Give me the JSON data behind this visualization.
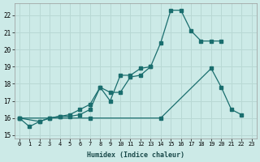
{
  "xlabel": "Humidex (Indice chaleur)",
  "background_color": "#cceae7",
  "grid_color": "#b8d8d4",
  "line_color": "#1a6e6e",
  "ylim": [
    14.8,
    22.7
  ],
  "xlim": [
    -0.5,
    23.5
  ],
  "yticks": [
    15,
    16,
    17,
    18,
    19,
    20,
    21,
    22
  ],
  "xticks": [
    0,
    1,
    2,
    3,
    4,
    5,
    6,
    7,
    8,
    9,
    10,
    11,
    12,
    13,
    14,
    15,
    16,
    17,
    18,
    19,
    20,
    21,
    22,
    23
  ],
  "xtick_labels": [
    "0",
    "1",
    "2",
    "3",
    "4",
    "5",
    "6",
    "7",
    "8",
    "9",
    "10",
    "11",
    "12",
    "13",
    "14",
    "15",
    "16",
    "17",
    "18",
    "19",
    "20",
    "21",
    "22",
    "23"
  ],
  "line1_x": [
    0,
    1,
    2,
    3,
    4,
    5,
    6,
    7,
    8,
    9,
    10,
    11,
    12,
    13,
    14,
    15,
    16,
    17,
    18,
    19,
    20
  ],
  "line1_y": [
    16.0,
    15.5,
    15.8,
    16.0,
    16.1,
    16.1,
    16.2,
    16.5,
    17.8,
    17.0,
    18.5,
    18.5,
    18.9,
    19.0,
    20.4,
    22.3,
    22.3,
    21.1,
    20.5,
    20.5,
    20.5
  ],
  "line2_x": [
    0,
    2,
    3,
    4,
    5,
    6,
    7,
    8,
    9,
    10,
    11,
    12,
    13
  ],
  "line2_y": [
    16.0,
    15.8,
    16.0,
    16.1,
    16.2,
    16.5,
    16.8,
    17.8,
    17.5,
    17.5,
    18.4,
    18.5,
    19.0
  ],
  "line3_x": [
    0,
    7,
    14,
    19,
    20,
    21,
    22
  ],
  "line3_y": [
    16.0,
    16.0,
    16.0,
    18.9,
    17.8,
    16.5,
    16.2
  ]
}
